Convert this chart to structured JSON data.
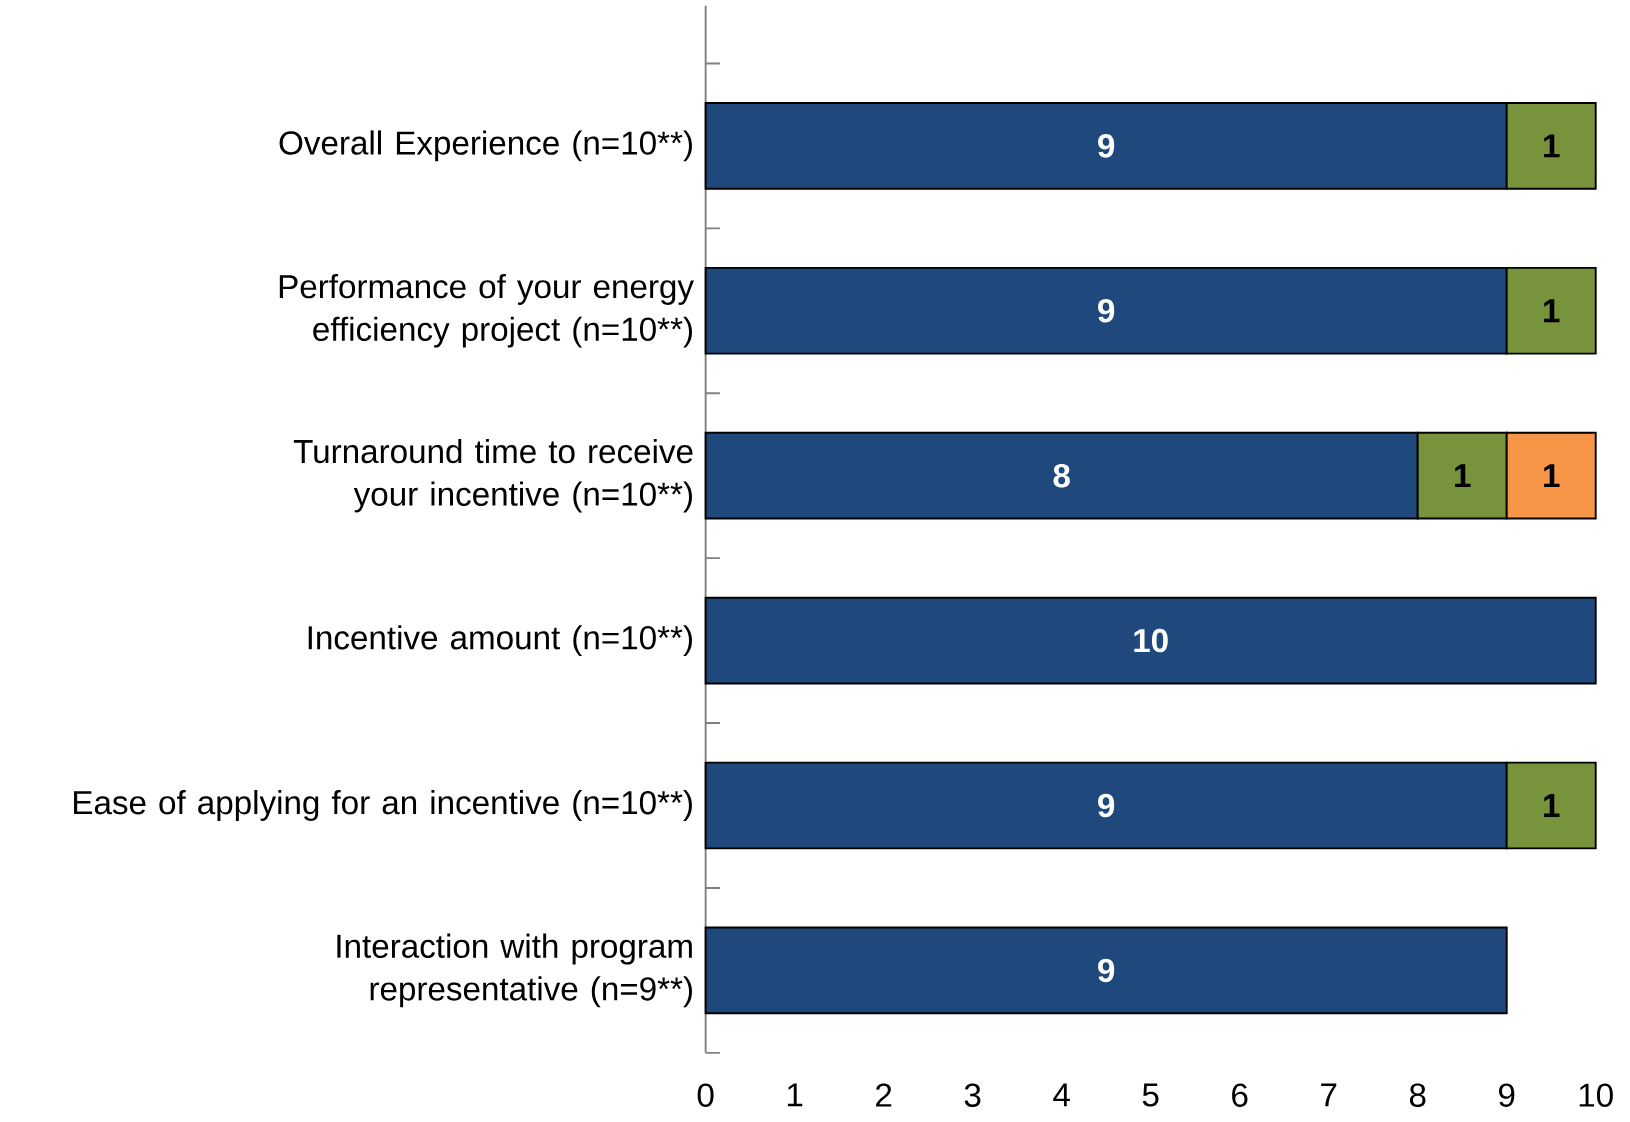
{
  "chart_data": {
    "type": "bar",
    "orientation": "horizontal",
    "stacked": true,
    "data_labels": true,
    "categories": [
      "Overall Experience (n=10**)",
      "Performance of your energy efficiency project (n=10**)",
      "Turnaround time to receive your incentive (n=10**)",
      "Incentive amount (n=10**)",
      "Ease of applying for an incentive (n=10**)",
      "Interaction with program representative (n=9**)"
    ],
    "series": [
      {
        "color": "#1f497d",
        "values": [
          9,
          9,
          8,
          10,
          9,
          9
        ]
      },
      {
        "color": "#77933c",
        "values": [
          1,
          1,
          1,
          null,
          1,
          null
        ]
      },
      {
        "color": "#f79646",
        "values": [
          null,
          null,
          1,
          null,
          null,
          null
        ]
      }
    ],
    "xlim": [
      0,
      10
    ],
    "xticks": [
      0,
      1,
      2,
      3,
      4,
      5,
      6,
      7,
      8,
      9,
      10
    ],
    "grid": false
  }
}
